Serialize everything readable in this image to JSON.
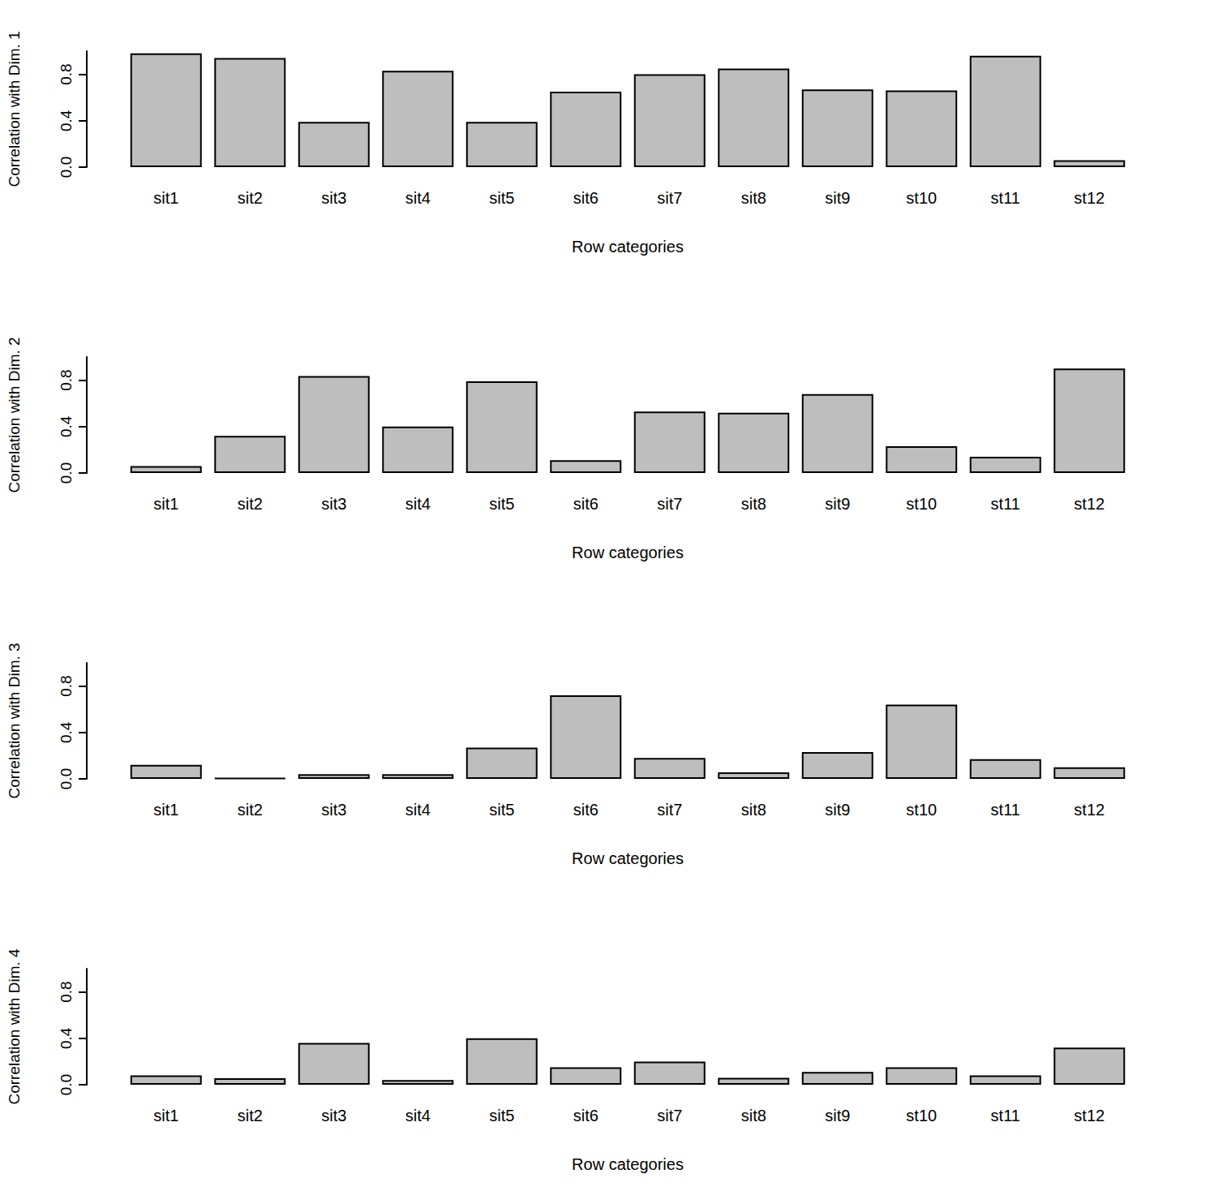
{
  "chart_data": [
    {
      "type": "bar",
      "x_label": "Row categories",
      "y_label": "Correlation with Dim. 1",
      "categories": [
        "sit1",
        "sit2",
        "sit3",
        "sit4",
        "sit5",
        "sit6",
        "sit7",
        "sit8",
        "sit9",
        "st10",
        "st11",
        "st12"
      ],
      "values": [
        0.98,
        0.94,
        0.39,
        0.83,
        0.39,
        0.65,
        0.8,
        0.85,
        0.67,
        0.66,
        0.96,
        0.06
      ],
      "color": "#bebebe",
      "ylim": [
        0,
        1
      ],
      "yticks": [
        {
          "value": 0,
          "label": "0.0"
        },
        {
          "value": 0.4,
          "label": "0.4"
        },
        {
          "value": 0.8,
          "label": "0.8"
        }
      ],
      "grid": false
    },
    {
      "type": "bar",
      "x_label": "Row categories",
      "y_label": "Correlation with Dim. 2",
      "categories": [
        "sit1",
        "sit2",
        "sit3",
        "sit4",
        "sit5",
        "sit6",
        "sit7",
        "sit8",
        "sit9",
        "st10",
        "st11",
        "st12"
      ],
      "values": [
        0.06,
        0.32,
        0.835,
        0.4,
        0.79,
        0.11,
        0.53,
        0.52,
        0.68,
        0.23,
        0.14,
        0.9
      ],
      "color": "#bebebe",
      "ylim": [
        0,
        1
      ],
      "yticks": [
        {
          "value": 0,
          "label": "0.0"
        },
        {
          "value": 0.4,
          "label": "0.4"
        },
        {
          "value": 0.8,
          "label": "0.8"
        }
      ],
      "grid": false
    },
    {
      "type": "bar",
      "x_label": "Row categories",
      "y_label": "Correlation with Dim. 3",
      "categories": [
        "sit1",
        "sit2",
        "sit3",
        "sit4",
        "sit5",
        "sit6",
        "sit7",
        "sit8",
        "sit9",
        "st10",
        "st11",
        "st12"
      ],
      "values": [
        0.12,
        0.007,
        0.04,
        0.04,
        0.27,
        0.72,
        0.18,
        0.056,
        0.23,
        0.64,
        0.17,
        0.1
      ],
      "color": "#bebebe",
      "ylim": [
        0,
        1
      ],
      "yticks": [
        {
          "value": 0,
          "label": "0.0"
        },
        {
          "value": 0.4,
          "label": "0.4"
        },
        {
          "value": 0.8,
          "label": "0.8"
        }
      ],
      "grid": false
    },
    {
      "type": "bar",
      "x_label": "Row categories",
      "y_label": "Correlation with Dim. 4",
      "categories": [
        "sit1",
        "sit2",
        "sit3",
        "sit4",
        "sit5",
        "sit6",
        "sit7",
        "sit8",
        "sit9",
        "st10",
        "st11",
        "st12"
      ],
      "values": [
        0.08,
        0.056,
        0.36,
        0.04,
        0.4,
        0.15,
        0.2,
        0.06,
        0.11,
        0.15,
        0.08,
        0.32
      ],
      "color": "#bebebe",
      "ylim": [
        0,
        1
      ],
      "yticks": [
        {
          "value": 0,
          "label": "0.0"
        },
        {
          "value": 0.4,
          "label": "0.4"
        },
        {
          "value": 0.8,
          "label": "0.8"
        }
      ],
      "grid": false
    }
  ]
}
